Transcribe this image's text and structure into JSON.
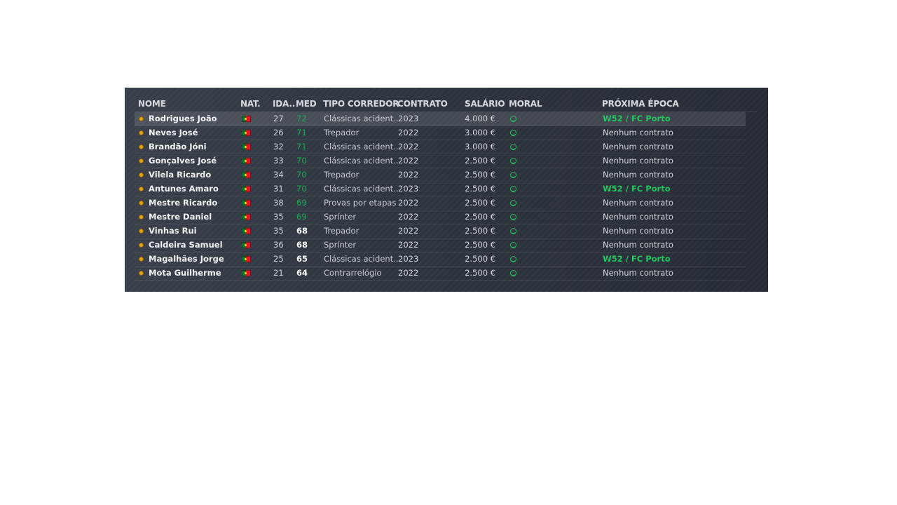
{
  "columns": {
    "name": "NOME",
    "nat": "NAT.",
    "age": "IDA..",
    "med": "MED",
    "type": "TIPO CORREDOR",
    "contract": "CONTRATO",
    "salary": "SALÁRIO",
    "moral": "MORAL",
    "next": "PRÓXIMA ÉPOCA"
  },
  "colors": {
    "med_green": "#1cab55",
    "team_green": "#21c65f",
    "coin": "#e2a514"
  },
  "flag_icon": "portugal-flag-icon",
  "moral_icon": "smiley-face-icon",
  "rows": [
    {
      "name": "Rodrigues João",
      "age": "27",
      "med": "72",
      "med_style": "green",
      "type": "Clássicas acident..",
      "contract": "2023",
      "salary": "4.000 €",
      "next": "W52 / FC Porto",
      "next_style": "team",
      "selected": true
    },
    {
      "name": "Neves José",
      "age": "26",
      "med": "71",
      "med_style": "green",
      "type": "Trepador",
      "contract": "2022",
      "salary": "3.000 €",
      "next": "Nenhum contrato",
      "next_style": "plain"
    },
    {
      "name": "Brandão Jóni",
      "age": "32",
      "med": "71",
      "med_style": "green",
      "type": "Clássicas acident..",
      "contract": "2022",
      "salary": "3.000 €",
      "next": "Nenhum contrato",
      "next_style": "plain"
    },
    {
      "name": "Gonçalves José",
      "age": "33",
      "med": "70",
      "med_style": "green",
      "type": "Clássicas acident..",
      "contract": "2022",
      "salary": "2.500 €",
      "next": "Nenhum contrato",
      "next_style": "plain"
    },
    {
      "name": "Vilela Ricardo",
      "age": "34",
      "med": "70",
      "med_style": "green",
      "type": "Trepador",
      "contract": "2022",
      "salary": "2.500 €",
      "next": "Nenhum contrato",
      "next_style": "plain"
    },
    {
      "name": "Antunes Amaro",
      "age": "31",
      "med": "70",
      "med_style": "green",
      "type": "Clássicas acident..",
      "contract": "2023",
      "salary": "2.500 €",
      "next": "W52 / FC Porto",
      "next_style": "team"
    },
    {
      "name": "Mestre Ricardo",
      "age": "38",
      "med": "69",
      "med_style": "green",
      "type": "Provas por etapas",
      "contract": "2022",
      "salary": "2.500 €",
      "next": "Nenhum contrato",
      "next_style": "plain"
    },
    {
      "name": "Mestre Daniel",
      "age": "35",
      "med": "69",
      "med_style": "green",
      "type": "Sprínter",
      "contract": "2022",
      "salary": "2.500 €",
      "next": "Nenhum contrato",
      "next_style": "plain"
    },
    {
      "name": "Vinhas Rui",
      "age": "35",
      "med": "68",
      "med_style": "white",
      "type": "Trepador",
      "contract": "2022",
      "salary": "2.500 €",
      "next": "Nenhum contrato",
      "next_style": "plain"
    },
    {
      "name": "Caldeira Samuel",
      "age": "36",
      "med": "68",
      "med_style": "white",
      "type": "Sprínter",
      "contract": "2022",
      "salary": "2.500 €",
      "next": "Nenhum contrato",
      "next_style": "plain"
    },
    {
      "name": "Magalhães Jorge",
      "age": "25",
      "med": "65",
      "med_style": "white",
      "type": "Clássicas acident..",
      "contract": "2023",
      "salary": "2.500 €",
      "next": "W52 / FC Porto",
      "next_style": "team"
    },
    {
      "name": "Mota Guilherme",
      "age": "21",
      "med": "64",
      "med_style": "white",
      "type": "Contrarrelógio",
      "contract": "2022",
      "salary": "2.500 €",
      "next": "Nenhum contrato",
      "next_style": "plain"
    }
  ]
}
